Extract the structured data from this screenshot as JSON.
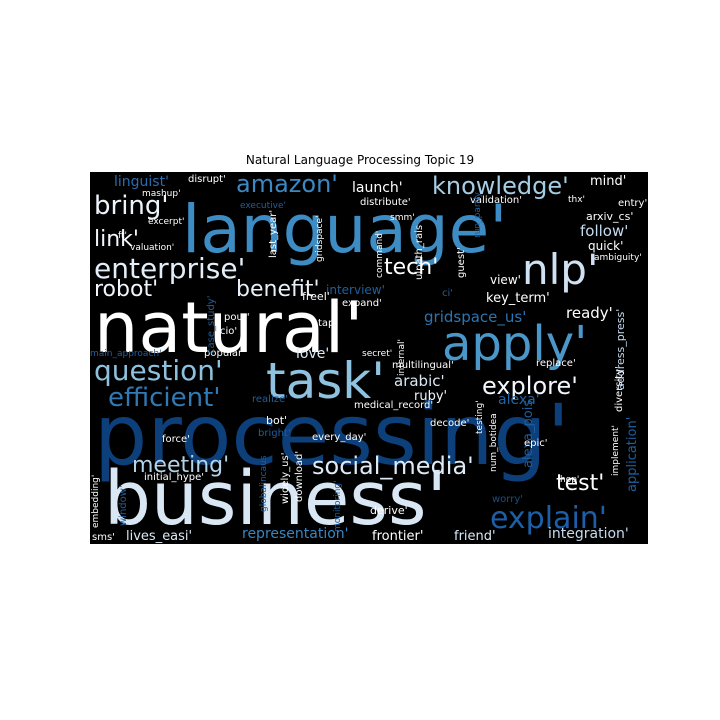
{
  "title": "Natural Language Processing Topic 19",
  "colors": {
    "background": "#000000",
    "scheme": "Blues"
  },
  "words": [
    {
      "text": "processing'",
      "color": "#0d3f7a"
    },
    {
      "text": "business'",
      "color": "#d9e7f5"
    },
    {
      "text": "natural'",
      "color": "#ffffff"
    },
    {
      "text": "language'",
      "color": "#3d8cc4"
    },
    {
      "text": "apply'",
      "color": "#4a98c9"
    },
    {
      "text": "task'",
      "color": "#8fc2de"
    },
    {
      "text": "nlp'",
      "color": "#cfe1f2"
    },
    {
      "text": "enterprise'",
      "color": "#e3eef8"
    },
    {
      "text": "knowledge'",
      "color": "#a6cde3"
    },
    {
      "text": "question'",
      "color": "#8dc1dd"
    },
    {
      "text": "explain'",
      "color": "#1c5fa6"
    },
    {
      "text": "efficient'",
      "color": "#2f79b5"
    },
    {
      "text": "social_media'",
      "color": "#deebf7"
    },
    {
      "text": "explore'",
      "color": "#f2f7fd"
    },
    {
      "text": "amazon'",
      "color": "#3c88c2"
    },
    {
      "text": "benefit'",
      "color": "#e8f1fa"
    },
    {
      "text": "robot'",
      "color": "#f0f6fc"
    },
    {
      "text": "bring'",
      "color": "#ebf3fb"
    },
    {
      "text": "tech'",
      "color": "#ffffff"
    },
    {
      "text": "meeting'",
      "color": "#b3d3e8"
    },
    {
      "text": "test'",
      "color": "#ffffff"
    },
    {
      "text": "link'",
      "color": "#f0f6fc"
    },
    {
      "text": "follow'",
      "color": "#c6dbef"
    },
    {
      "text": "representation'",
      "color": "#3a86c0"
    },
    {
      "text": "integration'",
      "color": "#c6dbef"
    },
    {
      "text": "launch'",
      "color": "#ffffff"
    },
    {
      "text": "ready'",
      "color": "#ffffff"
    },
    {
      "text": "love'",
      "color": "#dbe9f6"
    },
    {
      "text": "arabic'",
      "color": "#d9e7f5"
    },
    {
      "text": "gridspace_us'",
      "color": "#2b74b3"
    },
    {
      "text": "alexa'",
      "color": "#1f63a8"
    },
    {
      "text": "frontier'",
      "color": "#ffffff"
    },
    {
      "text": "friend'",
      "color": "#dbe9f6"
    },
    {
      "text": "lives_easi'",
      "color": "#dbe9f6"
    },
    {
      "text": "ruby'",
      "color": "#f0f6fc"
    },
    {
      "text": "linguist'",
      "color": "#2c6cb0"
    },
    {
      "text": "mind'",
      "color": "#ffffff"
    },
    {
      "text": "quick'",
      "color": "#ffffff"
    },
    {
      "text": "view'",
      "color": "#ffffff"
    },
    {
      "text": "key_term'",
      "color": "#ffffff"
    },
    {
      "text": "interview'",
      "color": "#1f5f9e"
    },
    {
      "text": "alexa_pois",
      "color": "#1f5f9e"
    },
    {
      "text": "application'",
      "color": "#1f5f9e"
    },
    {
      "text": "address_press'",
      "color": "#c6dbef"
    },
    {
      "text": "arxiv_cs'",
      "color": "#ffffff"
    },
    {
      "text": "validation'",
      "color": "#ffffff"
    },
    {
      "text": "distribute'",
      "color": "#ffffff"
    },
    {
      "text": "command'",
      "color": "#ffffff"
    },
    {
      "text": "uipath_rais",
      "color": "#ffffff"
    },
    {
      "text": "gridspace'",
      "color": "#ffffff"
    },
    {
      "text": "last_year'",
      "color": "#ffffff"
    },
    {
      "text": "freel'",
      "color": "#ffffff"
    },
    {
      "text": "expand'",
      "color": "#ffffff"
    },
    {
      "text": "guest'",
      "color": "#ffffff"
    },
    {
      "text": "multilingual'",
      "color": "#ffffff"
    },
    {
      "text": "internal'",
      "color": "#ffffff"
    },
    {
      "text": "secret'",
      "color": "#ffffff"
    },
    {
      "text": "replace'",
      "color": "#ffffff"
    },
    {
      "text": "diversity'",
      "color": "#ffffff"
    },
    {
      "text": "medical_record'",
      "color": "#ffffff"
    },
    {
      "text": "every_day'",
      "color": "#ffffff"
    },
    {
      "text": "decode'",
      "color": "#ffffff"
    },
    {
      "text": "testing'",
      "color": "#ffffff"
    },
    {
      "text": "num_botidea",
      "color": "#ffffff"
    },
    {
      "text": "epic'",
      "color": "#ffffff"
    },
    {
      "text": "hop'",
      "color": "#ffffff"
    },
    {
      "text": "worry'",
      "color": "#1a4f8a"
    },
    {
      "text": "implement'",
      "color": "#ffffff"
    },
    {
      "text": "derive'",
      "color": "#ffffff"
    },
    {
      "text": "download'",
      "color": "#ffffff"
    },
    {
      "text": "widely_us'",
      "color": "#ffffff"
    },
    {
      "text": "initial_hype'",
      "color": "#ffffff"
    },
    {
      "text": "bot'",
      "color": "#ffffff"
    },
    {
      "text": "bright'",
      "color": "#1f5f9e"
    },
    {
      "text": "force'",
      "color": "#ffffff"
    },
    {
      "text": "realize'",
      "color": "#1f5f9e"
    },
    {
      "text": "popular'",
      "color": "#ffffff"
    },
    {
      "text": "pour'",
      "color": "#ffffff"
    },
    {
      "text": "cio'",
      "color": "#ffffff"
    },
    {
      "text": "tap'",
      "color": "#ffffff"
    },
    {
      "text": "case_study'",
      "color": "#1f5f9e"
    },
    {
      "text": "main_approach'",
      "color": "#1f5f9e"
    },
    {
      "text": "valuation'",
      "color": "#ffffff"
    },
    {
      "text": "excerpt'",
      "color": "#ffffff"
    },
    {
      "text": "mashup'",
      "color": "#ffffff"
    },
    {
      "text": "disrupt'",
      "color": "#ffffff"
    },
    {
      "text": "executive'",
      "color": "#1f5f9e"
    },
    {
      "text": "thx'",
      "color": "#ffffff"
    },
    {
      "text": "ambiguity'",
      "color": "#ffffff"
    },
    {
      "text": "entry'",
      "color": "#ffffff"
    },
    {
      "text": "smm'",
      "color": "#ffffff"
    },
    {
      "text": "ft'",
      "color": "#ffffff"
    },
    {
      "text": "embedding'",
      "color": "#ffffff"
    },
    {
      "text": "window'",
      "color": "#1f5f9e"
    },
    {
      "text": "sms'",
      "color": "#ffffff"
    },
    {
      "text": "ci'",
      "color": "#1f5f9e"
    },
    {
      "text": "run_partly",
      "color": "#1f5f9e"
    },
    {
      "text": "monitoring'",
      "color": "#1f5f9e"
    },
    {
      "text": "globalincaus",
      "color": "#1f5f9e"
    }
  ]
}
